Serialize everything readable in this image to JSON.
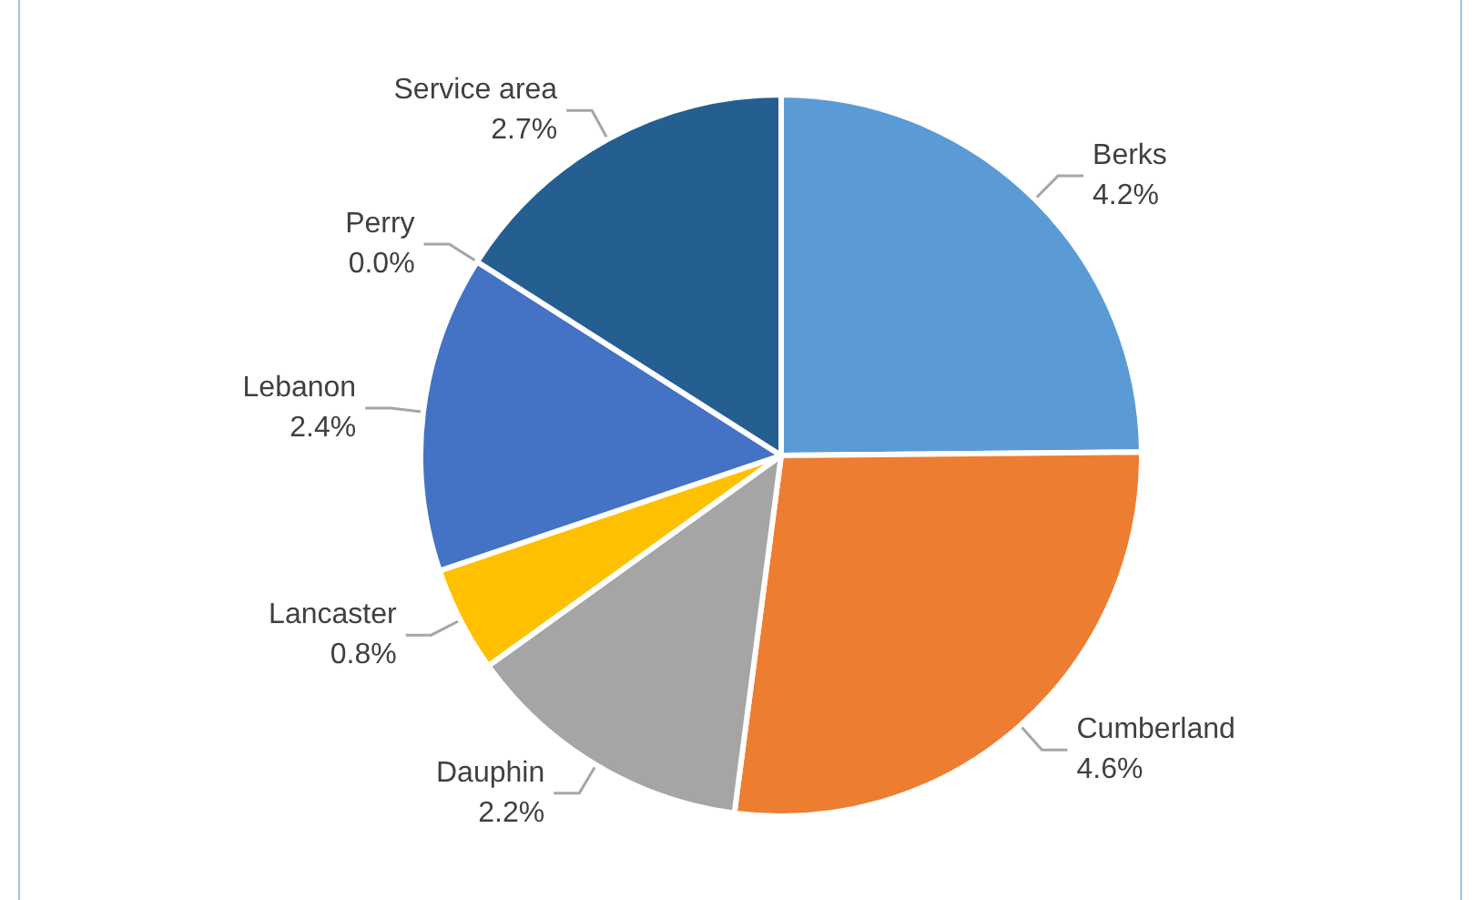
{
  "chart_data": {
    "type": "pie",
    "categories": [
      "Berks",
      "Cumberland",
      "Dauphin",
      "Lancaster",
      "Lebanon",
      "Perry",
      "Service area"
    ],
    "values": [
      4.2,
      4.6,
      2.2,
      0.8,
      2.4,
      0.0,
      2.7
    ],
    "value_labels": [
      "4.2%",
      "4.6%",
      "2.2%",
      "0.8%",
      "2.4%",
      "0.0%",
      "2.7%"
    ],
    "colors": [
      "#5b9bd5",
      "#ed7d31",
      "#a5a5a5",
      "#ffc000",
      "#4472c4",
      "#70ad47",
      "#255e91"
    ],
    "legend": false
  }
}
